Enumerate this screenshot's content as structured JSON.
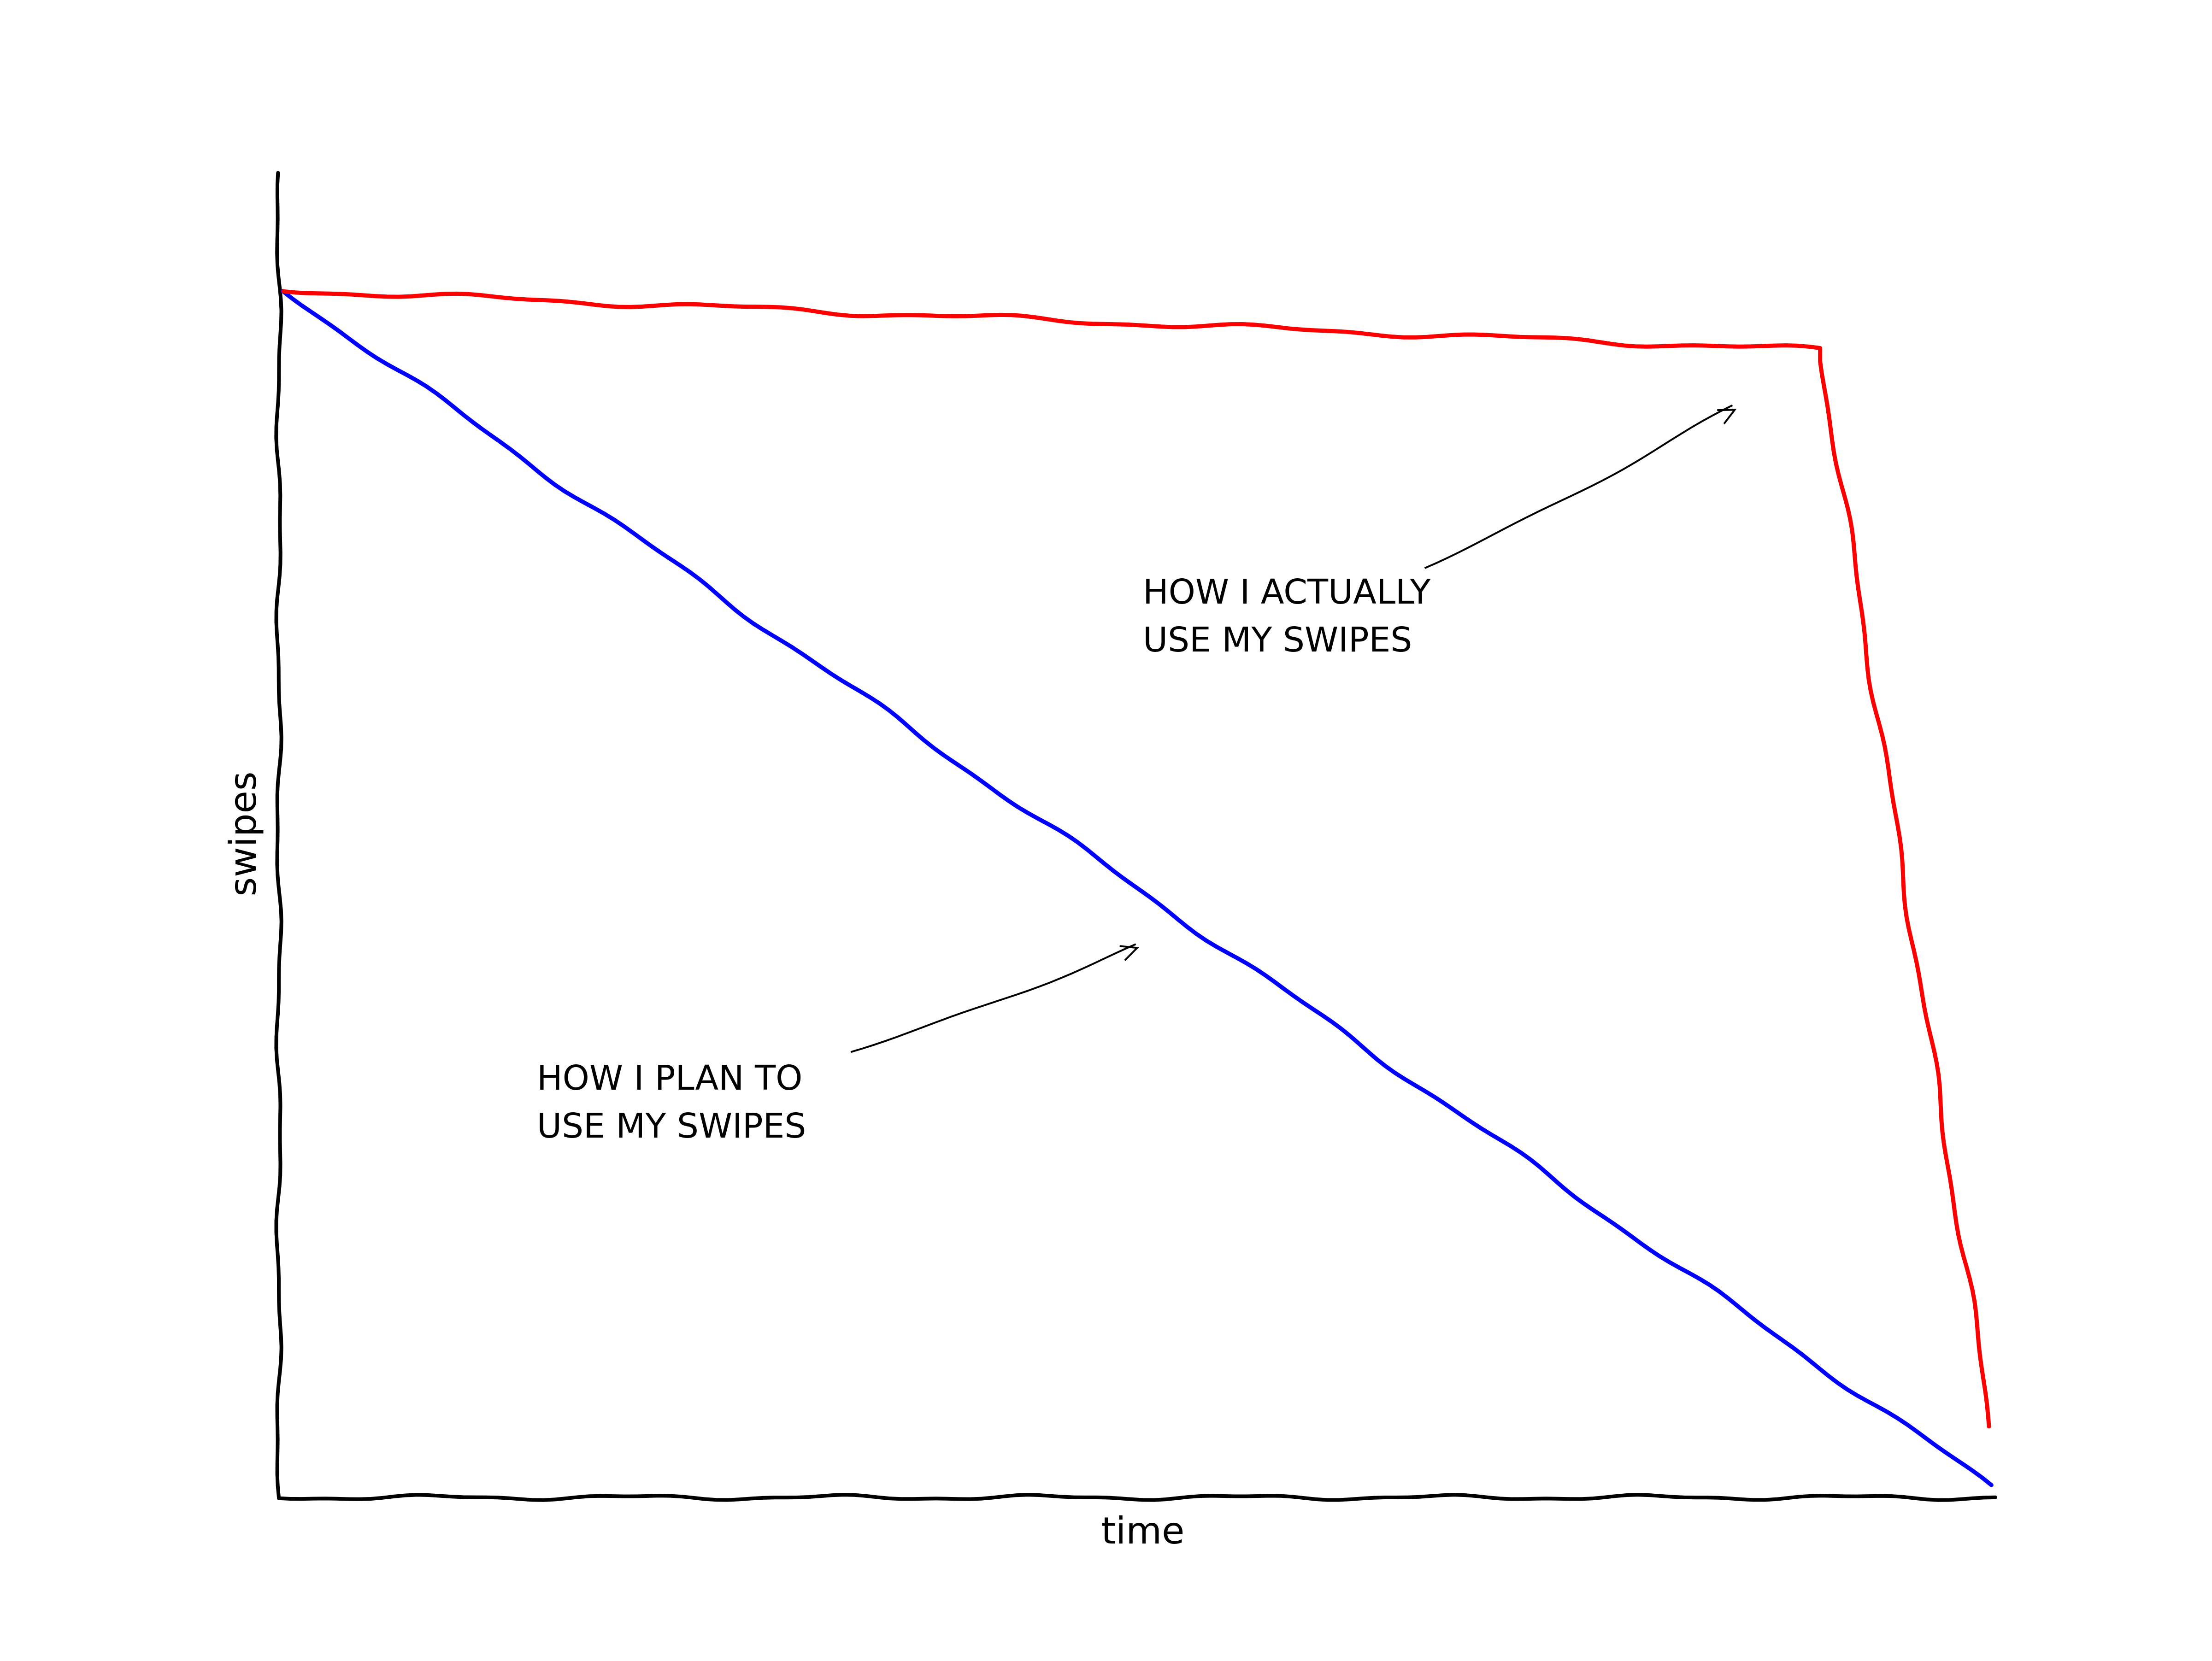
{
  "chart_data": {
    "type": "line",
    "title": "",
    "xlabel": "time",
    "ylabel": "swipes",
    "xlim": [
      0,
      1
    ],
    "ylim": [
      0,
      1
    ],
    "grid": false,
    "ticks": false,
    "series": [
      {
        "color": "#0000ff",
        "x": [
          0,
          1
        ],
        "y": [
          1,
          0
        ]
      },
      {
        "color": "#ff0000",
        "x": [
          0,
          0.9,
          1
        ],
        "y": [
          1,
          0.95,
          0.05
        ]
      }
    ],
    "annotations": [
      {
        "lines": [
          "HOW I PLAN TO",
          "USE MY SWIPES"
        ],
        "arrow_to": [
          0.5,
          0.45
        ]
      },
      {
        "lines": [
          "HOW I ACTUALLY",
          "USE MY SWIPES"
        ],
        "arrow_to": [
          0.85,
          0.9
        ]
      }
    ]
  }
}
